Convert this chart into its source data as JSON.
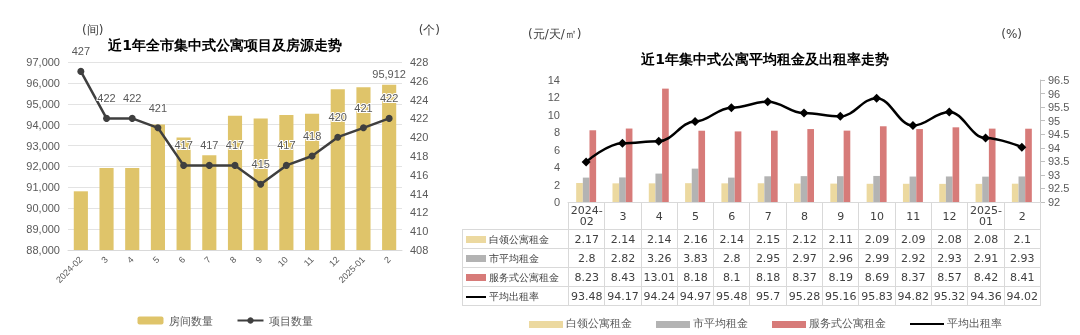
{
  "chart_data": [
    {
      "type": "bar",
      "title": "近1年全市集中式公寓项目及房源走势",
      "ylabel": "(间)",
      "y2label": "(个)",
      "categories": [
        "2024-02",
        "3",
        "4",
        "5",
        "6",
        "7",
        "8",
        "9",
        "10",
        "11",
        "12",
        "2025-01",
        "2"
      ],
      "series": [
        {
          "name": "房间数量",
          "color": "#dfc46a",
          "values": [
            90810,
            91920,
            91920,
            94010,
            93390,
            92530,
            94430,
            94300,
            94460,
            94520,
            95700,
            95790,
            95912
          ],
          "value_labels": [
            null,
            null,
            null,
            null,
            null,
            null,
            null,
            null,
            null,
            null,
            null,
            null,
            "95,912"
          ]
        },
        {
          "name": "项目数量",
          "type": "line",
          "axis": "y2",
          "color": "#3f3f3f",
          "values": [
            427,
            422,
            422,
            421,
            417,
            417,
            417,
            415,
            417,
            418,
            420,
            421,
            422
          ],
          "value_labels": [
            "427",
            "422",
            "422",
            "421",
            "417",
            "417",
            "417",
            "415",
            "417",
            "418",
            "420",
            "421",
            "422"
          ]
        }
      ],
      "ylim": [
        88000,
        97000
      ],
      "yticks": [
        {
          "value": 88000,
          "label": "88,000"
        },
        {
          "value": 89000,
          "label": "89,000"
        },
        {
          "value": 90000,
          "label": "90,000"
        },
        {
          "value": 91000,
          "label": "91,000"
        },
        {
          "value": 92000,
          "label": "92,000"
        },
        {
          "value": 93000,
          "label": "93,000"
        },
        {
          "value": 94000,
          "label": "94,000"
        },
        {
          "value": 95000,
          "label": "95,000"
        },
        {
          "value": 96000,
          "label": "96,000"
        },
        {
          "value": 97000,
          "label": "97,000"
        }
      ],
      "y2lim": [
        408,
        428
      ],
      "y2ticks": [
        408,
        410,
        412,
        414,
        416,
        418,
        420,
        422,
        424,
        426,
        428
      ],
      "grid": "y",
      "legend": "bottom",
      "marker": "circle"
    },
    {
      "type": "bar",
      "title": "近1年集中式公寓平均租金及出租率走势",
      "ylabel": "(元/天/㎡)",
      "y2label": "(%)",
      "categories": [
        "2024-02",
        "3",
        "4",
        "5",
        "6",
        "7",
        "8",
        "9",
        "10",
        "11",
        "12",
        "2025-01",
        "2"
      ],
      "series": [
        {
          "name": "白领公寓租金",
          "color": "#ecd9a0",
          "values": [
            2.17,
            2.14,
            2.14,
            2.16,
            2.14,
            2.15,
            2.12,
            2.11,
            2.09,
            2.09,
            2.08,
            2.08,
            2.1
          ]
        },
        {
          "name": "市平均租金",
          "color": "#b3b3b3",
          "values": [
            2.8,
            2.82,
            3.26,
            3.83,
            2.8,
            2.95,
            2.97,
            2.96,
            2.99,
            2.92,
            2.93,
            2.91,
            2.93
          ]
        },
        {
          "name": "服务式公寓租金",
          "color": "#d77b79",
          "values": [
            8.23,
            8.43,
            13.01,
            8.18,
            8.1,
            8.18,
            8.37,
            8.19,
            8.69,
            8.37,
            8.57,
            8.42,
            8.41
          ]
        },
        {
          "name": "平均出租率",
          "type": "line",
          "axis": "y2",
          "color": "#000000",
          "values": [
            93.48,
            94.17,
            94.24,
            94.97,
            95.48,
            95.7,
            95.28,
            95.16,
            95.83,
            94.82,
            95.32,
            94.36,
            94.02
          ]
        }
      ],
      "ylim": [
        0,
        14
      ],
      "yticks": [
        0,
        2,
        4,
        6,
        8,
        10,
        12,
        14
      ],
      "y2lim": [
        92,
        96.5
      ],
      "y2ticks": [
        92,
        92.5,
        93,
        93.5,
        94,
        94.5,
        95,
        95.5,
        96,
        96.5
      ],
      "data_labels": true,
      "legend": "bottom",
      "marker": "diamond"
    }
  ]
}
